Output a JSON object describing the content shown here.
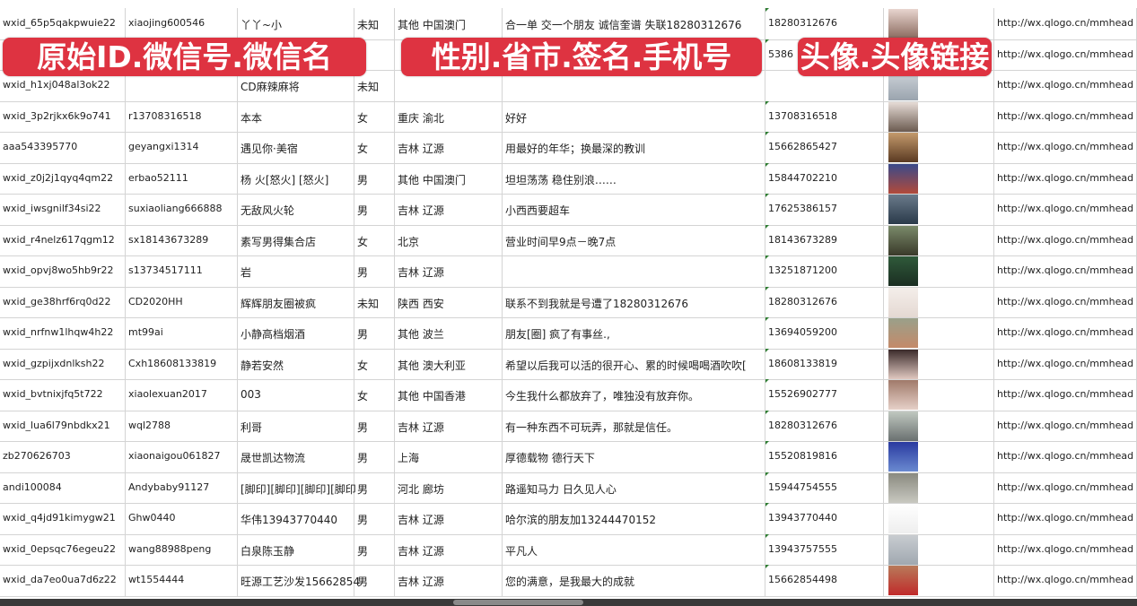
{
  "overlay_labels": [
    "原始ID.微信号.微信名",
    "性别.省市.签名.手机号",
    "头像.头像链接"
  ],
  "accent_color": "#de3341",
  "rows": [
    {
      "id": "wxid_65p5qakpwuie22",
      "wechat": "xiaojing600546",
      "name": "丫丫~小",
      "gender": "未知",
      "region": "其他 中国澳门",
      "signature": "合一单 交一个朋友 诚信奎谱 失联18280312676",
      "phone": "18280312676",
      "url": "http://wx.qlogo.cn/mmhead"
    },
    {
      "id": "",
      "wechat": "",
      "name": "",
      "gender": "",
      "region": "",
      "signature": "",
      "phone": "5386",
      "url": "http://wx.qlogo.cn/mmhead"
    },
    {
      "id": "wxid_h1xj048al3ok22",
      "wechat": "",
      "name": "CD麻辣麻将",
      "gender": "未知",
      "region": "",
      "signature": "",
      "phone": "",
      "url": "http://wx.qlogo.cn/mmhead"
    },
    {
      "id": "wxid_3p2rjkx6k9o741",
      "wechat": "r13708316518",
      "name": "本本",
      "gender": "女",
      "region": "重庆 渝北",
      "signature": "好好",
      "phone": "13708316518",
      "url": "http://wx.qlogo.cn/mmhead"
    },
    {
      "id": "aaa543395770",
      "wechat": "geyangxi1314",
      "name": "遇见你·美宿",
      "gender": "女",
      "region": "吉林 辽源",
      "signature": "用最好的年华；换最深的教训",
      "phone": "15662865427",
      "url": "http://wx.qlogo.cn/mmhead"
    },
    {
      "id": "wxid_z0j2j1qyq4qm22",
      "wechat": "erbao52111",
      "name": "杨 火[怒火] [怒火]",
      "gender": "男",
      "region": "其他 中国澳门",
      "signature": "坦坦荡荡 稳住别浪……",
      "phone": "15844702210",
      "url": "http://wx.qlogo.cn/mmhead"
    },
    {
      "id": "wxid_iwsgnilf34si22",
      "wechat": "suxiaoliang666888",
      "name": "无敌风火轮",
      "gender": "男",
      "region": "吉林 辽源",
      "signature": "小西西要超车",
      "phone": "17625386157",
      "url": "http://wx.qlogo.cn/mmhead"
    },
    {
      "id": "wxid_r4nelz617qgm12",
      "wechat": "sx18143673289",
      "name": "素写男得集合店",
      "gender": "女",
      "region": "北京",
      "signature": "营业时间早9点－晚7点",
      "phone": "18143673289",
      "url": "http://wx.qlogo.cn/mmhead"
    },
    {
      "id": "wxid_opvj8wo5hb9r22",
      "wechat": "s13734517111",
      "name": "岩",
      "gender": "男",
      "region": "吉林 辽源",
      "signature": "",
      "phone": "13251871200",
      "url": "http://wx.qlogo.cn/mmhead"
    },
    {
      "id": "wxid_ge38hrf6rq0d22",
      "wechat": "CD2020HH",
      "name": "辉辉朋友圈被疯",
      "gender": "未知",
      "region": "陕西 西安",
      "signature": "联系不到我就是号遭了18280312676",
      "phone": "18280312676",
      "url": "http://wx.qlogo.cn/mmhead"
    },
    {
      "id": "wxid_nrfnw1lhqw4h22",
      "wechat": "mt99ai",
      "name": "小静高档烟酒",
      "gender": "男",
      "region": "其他 波兰",
      "signature": "朋友[圈] 疯了有事丝.,",
      "phone": "13694059200",
      "url": "http://wx.qlogo.cn/mmhead"
    },
    {
      "id": "wxid_gzpijxdnlksh22",
      "wechat": "Cxh18608133819",
      "name": "静若安然",
      "gender": "女",
      "region": "其他 澳大利亚",
      "signature": "希望以后我可以活的很开心、累的时候喝喝酒吹吹[",
      "phone": "18608133819",
      "url": "http://wx.qlogo.cn/mmhead"
    },
    {
      "id": "wxid_bvtnixjfq5t722",
      "wechat": "xiaolexuan2017",
      "name": "003",
      "gender": "女",
      "region": "其他 中国香港",
      "signature": "今生我什么都放弃了，唯独没有放弃你。",
      "phone": "15526902777",
      "url": "http://wx.qlogo.cn/mmhead"
    },
    {
      "id": "wxid_lua6l79nbdkx21",
      "wechat": "wql2788",
      "name": "利哥",
      "gender": "男",
      "region": "吉林 辽源",
      "signature": "有一种东西不可玩弄，那就是信任。",
      "phone": "18280312676",
      "url": "http://wx.qlogo.cn/mmhead"
    },
    {
      "id": "zb270626703",
      "wechat": "xiaonaigou061827",
      "name": "晟世凯达物流",
      "gender": "男",
      "region": "上海",
      "signature": "厚德载物 德行天下",
      "phone": "15520819816",
      "url": "http://wx.qlogo.cn/mmhead"
    },
    {
      "id": "andi100084",
      "wechat": "Andybaby91127",
      "name": "[脚印][脚印][脚印][脚印",
      "gender": "男",
      "region": "河北 廊坊",
      "signature": "路遥知马力 日久见人心",
      "phone": "15944754555",
      "url": "http://wx.qlogo.cn/mmhead"
    },
    {
      "id": "wxid_q4jd91kimygw21",
      "wechat": "Ghw0440",
      "name": "华伟13943770440",
      "gender": "男",
      "region": "吉林 辽源",
      "signature": "哈尔滨的朋友加13244470152",
      "phone": "13943770440",
      "url": "http://wx.qlogo.cn/mmhead"
    },
    {
      "id": "wxid_0epsqc76egeu22",
      "wechat": "wang88988peng",
      "name": "白泉陈玉静",
      "gender": "男",
      "region": "吉林 辽源",
      "signature": "平凡人",
      "phone": "13943757555",
      "url": "http://wx.qlogo.cn/mmhead"
    },
    {
      "id": "wxid_da7eo0ua7d6z22",
      "wechat": "wt1554444",
      "name": "旺源工艺沙发15662854",
      "gender": "男",
      "region": "吉林 辽源",
      "signature": "您的满意，是我最大的成就",
      "phone": "15662854498",
      "url": "http://wx.qlogo.cn/mmhead"
    }
  ]
}
